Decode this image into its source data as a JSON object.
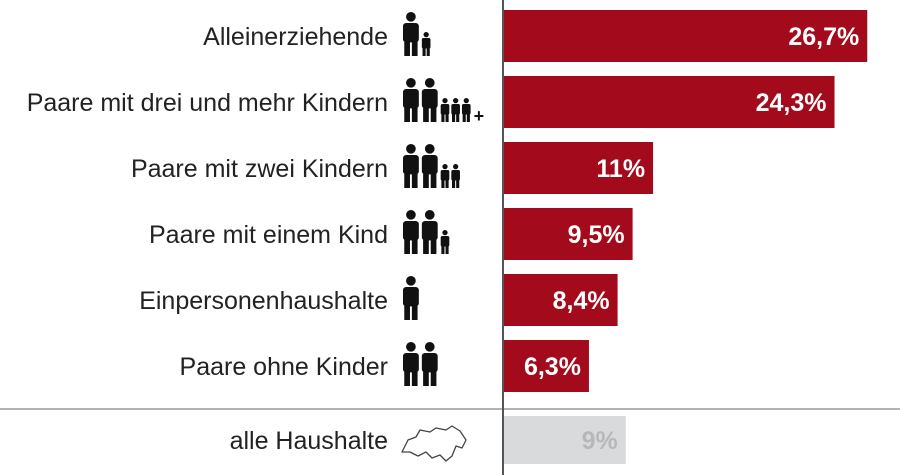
{
  "colors": {
    "bar": "#a30a1c",
    "total_bar": "#d9dadb",
    "total_label": "#b8b8b8",
    "axis": "#555555",
    "separator": "#9a9a9a",
    "icon": "#111111",
    "text": "#222222"
  },
  "chart_data": {
    "type": "bar",
    "orientation": "horizontal",
    "categories": [
      "Alleinerziehende",
      "Paare mit drei und mehr Kindern",
      "Paare mit zwei Kindern",
      "Paare mit einem Kind",
      "Einpersonenhaushalte",
      "Paare ohne Kinder"
    ],
    "values": [
      26.7,
      24.3,
      11,
      9.5,
      8.4,
      6.3
    ],
    "value_labels": [
      "26,7%",
      "24,3%",
      "11%",
      "9,5%",
      "8,4%",
      "6,3%"
    ],
    "icons": [
      {
        "adults": 1,
        "children": 1,
        "plus": false
      },
      {
        "adults": 2,
        "children": 3,
        "plus": true
      },
      {
        "adults": 2,
        "children": 2,
        "plus": false
      },
      {
        "adults": 2,
        "children": 1,
        "plus": false
      },
      {
        "adults": 1,
        "children": 0,
        "plus": false
      },
      {
        "adults": 2,
        "children": 0,
        "plus": false
      }
    ],
    "total": {
      "label": "alle Haushalte",
      "value": 9,
      "value_label": "9%",
      "icon": "switzerland-outline-icon"
    },
    "xlim": [
      0,
      28
    ]
  }
}
